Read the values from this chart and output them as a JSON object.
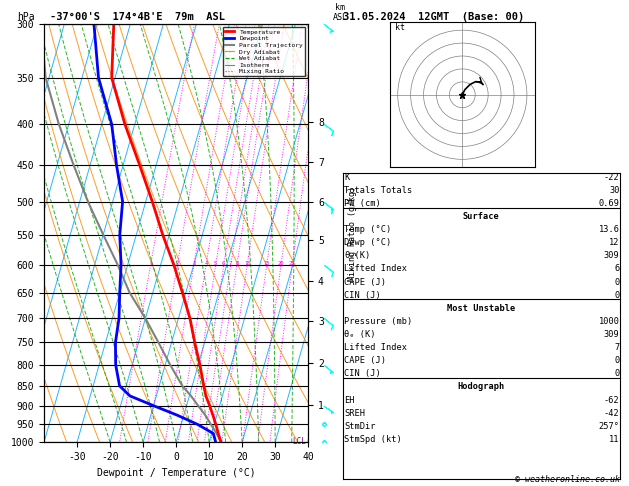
{
  "title_left": "-37°00'S  174°4B'E  79m  ASL",
  "title_right": "31.05.2024  12GMT  (Base: 00)",
  "label_hpa": "hPa",
  "xlabel": "Dewpoint / Temperature (°C)",
  "pressure_ticks_major": [
    300,
    350,
    400,
    450,
    500,
    550,
    600,
    650,
    700,
    750,
    800,
    850,
    900,
    950,
    1000
  ],
  "temp_range": [
    -40,
    40
  ],
  "temp_ticks": [
    -30,
    -20,
    -10,
    0,
    10,
    20,
    30,
    40
  ],
  "temp_labels": [
    "-30",
    "-20",
    "-10",
    "0",
    "10",
    "20",
    "30",
    "40"
  ],
  "mixing_ratio_line_values": [
    1,
    2,
    3,
    4,
    5,
    6,
    7,
    8,
    10,
    15,
    20,
    25
  ],
  "km_ticks": [
    1,
    2,
    3,
    4,
    5,
    6,
    7,
    8
  ],
  "km_pressures": [
    899,
    795,
    705,
    628,
    559,
    500,
    446,
    398
  ],
  "background_color": "#ffffff",
  "temp_profile_p": [
    1000,
    975,
    950,
    925,
    900,
    875,
    850,
    800,
    750,
    700,
    650,
    600,
    550,
    500,
    450,
    400,
    350,
    300
  ],
  "temp_profile_t": [
    13.6,
    12.0,
    10.5,
    8.8,
    7.0,
    5.0,
    3.5,
    0.5,
    -3.0,
    -6.5,
    -11.0,
    -16.0,
    -22.0,
    -28.0,
    -35.0,
    -43.0,
    -51.0,
    -55.0
  ],
  "dewp_profile_t": [
    12.0,
    10.5,
    5.0,
    -2.0,
    -10.0,
    -18.0,
    -22.0,
    -25.0,
    -27.0,
    -28.0,
    -30.0,
    -32.0,
    -35.0,
    -37.0,
    -42.0,
    -47.0,
    -55.0,
    -61.0
  ],
  "parcel_profile_t": [
    13.6,
    11.5,
    9.0,
    6.5,
    3.5,
    0.5,
    -3.0,
    -8.5,
    -14.0,
    -20.0,
    -27.0,
    -33.0,
    -40.0,
    -47.5,
    -55.0,
    -63.0,
    -71.0,
    -77.0
  ],
  "color_temp": "#ff0000",
  "color_dewp": "#0000ff",
  "color_parcel": "#808080",
  "color_dry_adiabat": "#ff8c00",
  "color_wet_adiabat": "#00aa00",
  "color_isotherm": "#00aaff",
  "color_mixing": "#ff00ff",
  "legend_entries": [
    {
      "label": "Temperature",
      "color": "#ff0000",
      "lw": 2.0,
      "ls": "-"
    },
    {
      "label": "Dewpoint",
      "color": "#0000ff",
      "lw": 2.0,
      "ls": "-"
    },
    {
      "label": "Parcel Trajectory",
      "color": "#808080",
      "lw": 1.5,
      "ls": "-"
    },
    {
      "label": "Dry Adiabat",
      "color": "#ff8c00",
      "lw": 0.8,
      "ls": "-"
    },
    {
      "label": "Wet Adiabat",
      "color": "#00aa00",
      "lw": 0.8,
      "ls": "--"
    },
    {
      "label": "Isotherm",
      "color": "#00aaff",
      "lw": 0.8,
      "ls": "-"
    },
    {
      "label": "Mixing Ratio",
      "color": "#ff00ff",
      "lw": 0.8,
      "ls": ":"
    }
  ],
  "skew_factor": 30,
  "lcl_pressure": 998,
  "footer": "© weatheronline.co.uk",
  "hodo_u": [
    0,
    1,
    3,
    5,
    7,
    8
  ],
  "hodo_v": [
    0,
    2,
    4,
    5,
    5,
    4
  ],
  "wind_p_levels": [
    300,
    400,
    500,
    600,
    700,
    800,
    900,
    950,
    1000
  ],
  "wind_u": [
    -5,
    -8,
    -10,
    -8,
    -6,
    -5,
    -3,
    -2,
    -1
  ],
  "wind_v": [
    4,
    6,
    8,
    6,
    5,
    4,
    2,
    1,
    0
  ]
}
